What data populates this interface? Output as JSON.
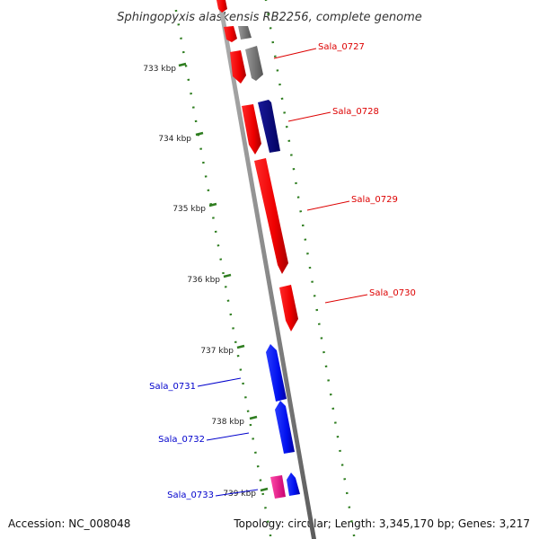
{
  "title": "Sphingopyxis alaskensis RB2256, complete genome",
  "accession": "Accession: NC_008048",
  "summary": "Topology: circular; Length: 3,345,170 bp; Genes: 3,217",
  "colors": {
    "background": "#ffffff",
    "backbone": "#8a8a8a",
    "tick": "#2e7d1f",
    "gene_forward": "#ff0000",
    "gene_reverse": "#0000ff",
    "gene_dark": "#000080",
    "gene_grey": "#7a7a7a",
    "gene_pink": "#ff1493",
    "label_forward": "#dd0000",
    "label_reverse": "#0000cc"
  },
  "ruler_labels": [
    "733 kbp",
    "734 kbp",
    "735 kbp",
    "736 kbp",
    "737 kbp",
    "738 kbp",
    "739 kbp"
  ],
  "gene_labels": [
    {
      "id": "Sala_0727",
      "strand": "forward"
    },
    {
      "id": "Sala_0728",
      "strand": "forward"
    },
    {
      "id": "Sala_0729",
      "strand": "forward"
    },
    {
      "id": "Sala_0730",
      "strand": "forward"
    },
    {
      "id": "Sala_0731",
      "strand": "reverse"
    },
    {
      "id": "Sala_0732",
      "strand": "reverse"
    },
    {
      "id": "Sala_0733",
      "strand": "reverse"
    }
  ]
}
